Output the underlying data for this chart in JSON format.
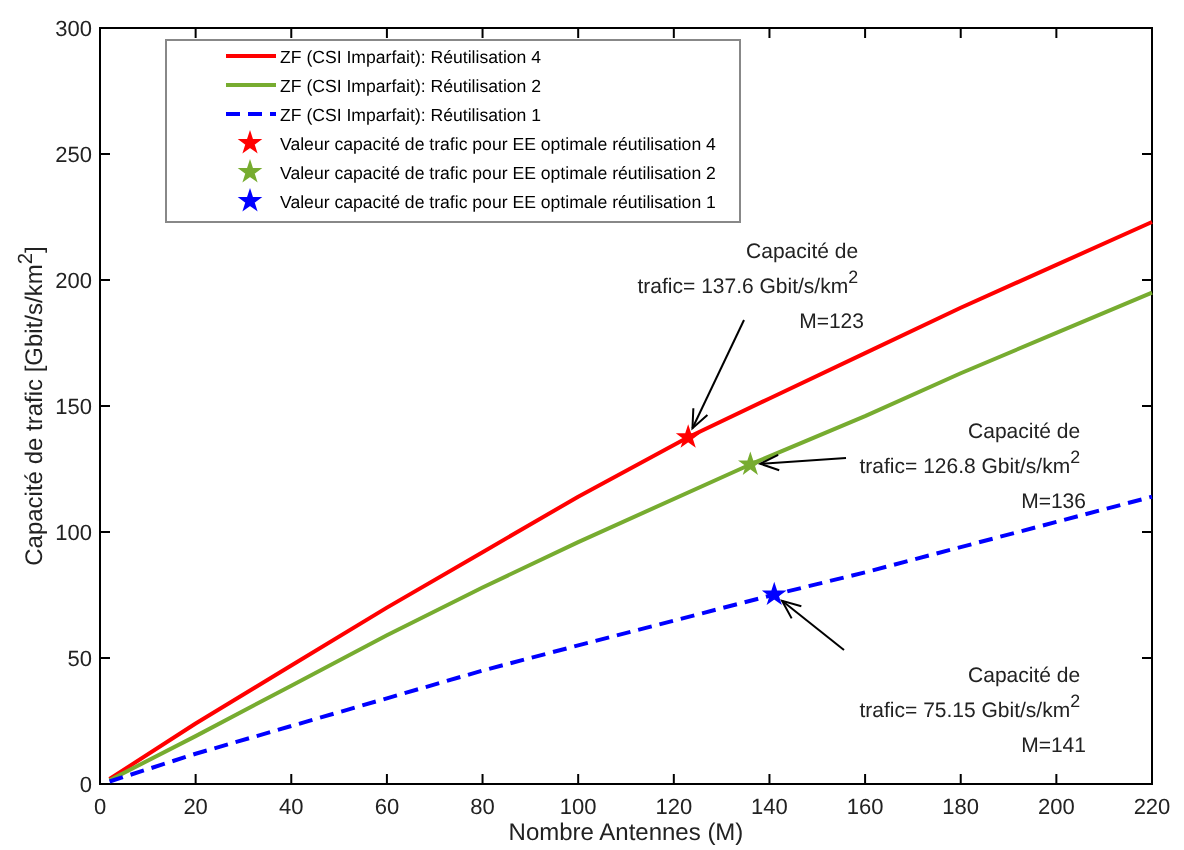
{
  "chart_data": {
    "type": "line",
    "xlabel": "Nombre Antennes (M)",
    "ylabel": "Capacité de trafic [Gbit/s/km$^{2}$]",
    "xlim": [
      0,
      220
    ],
    "ylim": [
      0,
      300
    ],
    "xticks": [
      0,
      20,
      40,
      60,
      80,
      100,
      120,
      140,
      160,
      180,
      200,
      220
    ],
    "yticks": [
      0,
      50,
      100,
      150,
      200,
      250,
      300
    ],
    "grid": false,
    "legend": "top left",
    "series": [
      {
        "name": "ZF (CSI Imparfait): Réutilisation 4",
        "color": "#ff0000",
        "line_style": "solid",
        "marker": "none",
        "x": [
          2,
          20,
          40,
          60,
          80,
          100,
          123,
          140,
          160,
          180,
          200,
          220
        ],
        "values": [
          2,
          24,
          47,
          70,
          92,
          114,
          137.6,
          153,
          171,
          189,
          206,
          223
        ]
      },
      {
        "name": "ZF (CSI Imparfait): Réutilisation 2",
        "color": "#77ac30",
        "line_style": "solid",
        "marker": "none",
        "x": [
          2,
          20,
          40,
          60,
          80,
          100,
          136,
          160,
          180,
          200,
          220
        ],
        "values": [
          1.5,
          19,
          39,
          59,
          78,
          96,
          126.8,
          146,
          163,
          179,
          195
        ]
      },
      {
        "name": "ZF (CSI Imparfait): Réutilisation 1",
        "color": "#0000ff",
        "line_style": "dashed",
        "marker": "none",
        "x": [
          2,
          20,
          40,
          60,
          80,
          100,
          141,
          160,
          180,
          200,
          220
        ],
        "values": [
          1,
          12,
          23,
          34,
          45,
          55,
          75.15,
          84,
          94,
          104,
          114
        ]
      },
      {
        "type": "scatter",
        "name": "Valeur capacité de trafic pour EE optimale réutilisation 4",
        "color": "#ff0000",
        "marker": "star",
        "x": [
          123
        ],
        "values": [
          137.6
        ]
      },
      {
        "type": "scatter",
        "name": "Valeur capacité de trafic pour EE optimale réutilisation 2",
        "color": "#77ac30",
        "marker": "star",
        "x": [
          136
        ],
        "values": [
          126.8
        ]
      },
      {
        "type": "scatter",
        "name": "Valeur capacité de trafic pour EE optimale réutilisation 1",
        "color": "#0000ff",
        "marker": "star",
        "x": [
          141
        ],
        "values": [
          75.15
        ]
      }
    ],
    "annotations": [
      "Capacité de trafic= 137.6 Gbit/s/km$^{2}$ M=123",
      "Capacité de trafic= 126.8 Gbit/s/km$^{2}$ M=136",
      "Capacité de trafic= 75.15 Gbit/s/km$^{2}$ M=141"
    ]
  }
}
